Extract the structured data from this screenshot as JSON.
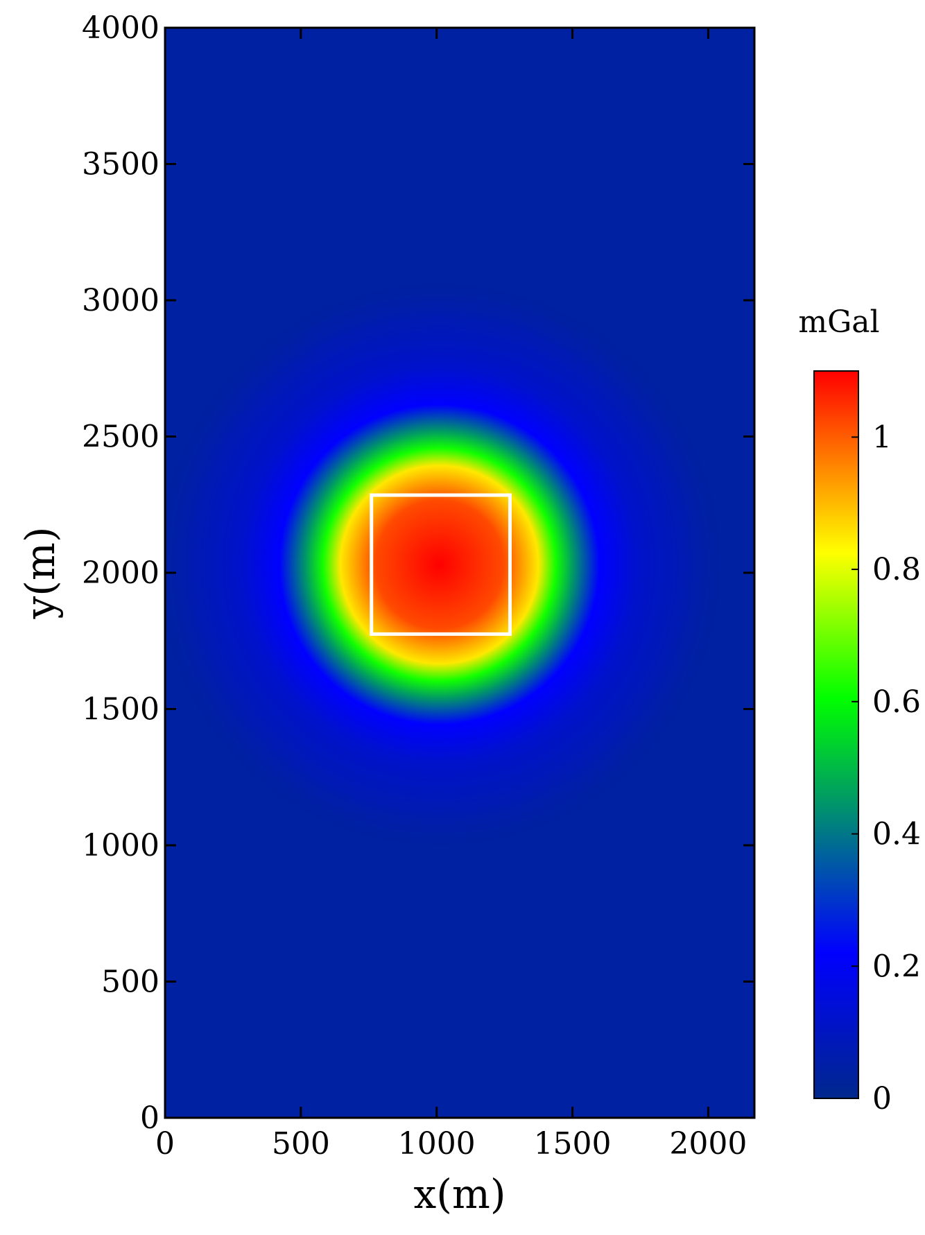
{
  "chart_data": {
    "type": "heatmap",
    "title": "",
    "xlabel": "x(m)",
    "ylabel": "y(m)",
    "xlim": [
      0,
      2170
    ],
    "ylim": [
      0,
      4000
    ],
    "x_ticks": [
      0,
      500,
      1000,
      1500,
      2000
    ],
    "y_ticks": [
      0,
      500,
      1000,
      1500,
      2000,
      2500,
      3000,
      3500,
      4000
    ],
    "colorbar": {
      "title": "mGal",
      "range": [
        0,
        1.1
      ],
      "ticks": [
        0,
        0.2,
        0.4,
        0.6,
        0.8,
        1
      ],
      "tick_labels": [
        "0",
        "0.2",
        "0.4",
        "0.6",
        "0.8",
        "1"
      ],
      "colormap": [
        "#00288c",
        "#0000ff",
        "#00ff00",
        "#ffff00",
        "#ff0000"
      ]
    },
    "anomaly": {
      "center": [
        1010,
        2030
      ],
      "peak_value": 1.1,
      "outline_rect": {
        "x0": 760,
        "x1": 1270,
        "y0": 1775,
        "y1": 2285
      },
      "outline_color": "#ffffff"
    },
    "background_value": 0.04
  }
}
